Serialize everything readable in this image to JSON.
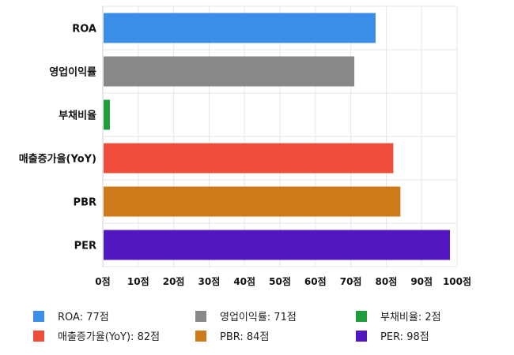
{
  "chart_data": {
    "type": "bar",
    "orientation": "horizontal",
    "categories": [
      "ROA",
      "영업이익률",
      "부채비율",
      "매출증가율(YoY)",
      "PBR",
      "PER"
    ],
    "values": [
      77,
      71,
      2,
      82,
      84,
      98
    ],
    "colors": [
      "#3a8ee8",
      "#888888",
      "#1f9d3a",
      "#ee4d3a",
      "#cc7a1a",
      "#5218c0"
    ],
    "xlim": [
      0,
      100
    ],
    "xticks": [
      "0점",
      "10점",
      "20점",
      "30점",
      "40점",
      "50점",
      "60점",
      "70점",
      "80점",
      "90점",
      "100점"
    ],
    "grid": true,
    "legend_position": "bottom",
    "legend": [
      "ROA: 77점",
      "영업이익률: 71점",
      "부채비율: 2점",
      "매출증가율(YoY): 82점",
      "PBR: 84점",
      "PER: 98점"
    ]
  }
}
